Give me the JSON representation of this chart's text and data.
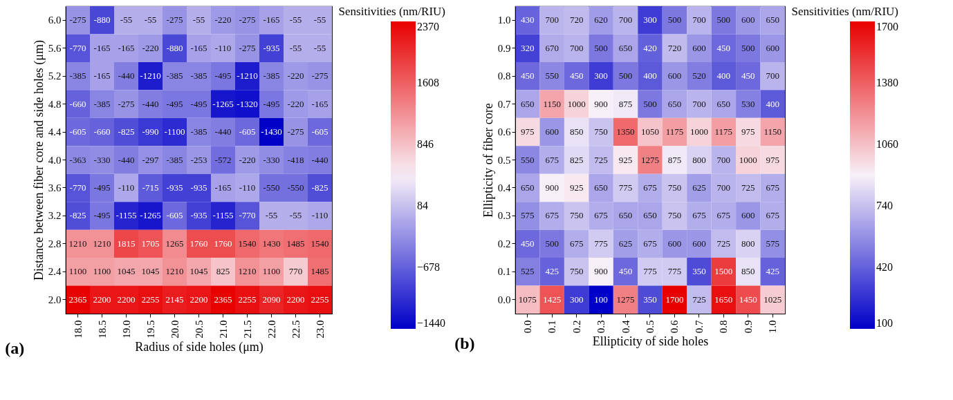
{
  "chart_data": [
    {
      "type": "heatmap",
      "xlabel": "Radius of side holes (μm)",
      "ylabel": "Distance between fiber core and side holes (μm)",
      "clabel": "Sensitivities (nm/RIU)",
      "annotations": [
        "(a)"
      ],
      "data_labels": true,
      "categories": [
        "18.0",
        "18.5",
        "19.0",
        "19.5",
        "20.0",
        "20.5",
        "21.0",
        "21.5",
        "22.0",
        "22.5",
        "23.0"
      ],
      "y_categories": [
        "6.0",
        "5.6",
        "5.2",
        "4.8",
        "4.4",
        "4.0",
        "3.6",
        "3.2",
        "2.8",
        "2.4",
        "2.0"
      ],
      "cells": [
        [
          -275,
          -880,
          -55,
          -55,
          -275,
          -55,
          -220,
          -275,
          -165,
          -55,
          -55
        ],
        [
          -770,
          -165,
          -165,
          -220,
          -880,
          -165,
          -110,
          -275,
          -935,
          -55,
          -55
        ],
        [
          -385,
          -165,
          -440,
          -1210,
          -385,
          -385,
          -495,
          -1210,
          -385,
          -220,
          -275
        ],
        [
          -660,
          -385,
          -275,
          -440,
          -495,
          -495,
          -1265,
          -1320,
          -495,
          -220,
          -165
        ],
        [
          -605,
          -660,
          -825,
          -990,
          -1100,
          -385,
          -440,
          -605,
          -1430,
          -275,
          -605
        ],
        [
          -363,
          -330,
          -440,
          -297,
          -385,
          -253,
          -572,
          -220,
          -330,
          -418,
          -440
        ],
        [
          -770,
          -495,
          -110,
          -715,
          -935,
          -935,
          -165,
          -110,
          -550,
          -550,
          -825
        ],
        [
          -825,
          -495,
          -1155,
          -1265,
          -605,
          -935,
          -1155,
          -770,
          -55,
          -55,
          -110
        ],
        [
          1210,
          1210,
          1815,
          1705,
          1265,
          1760,
          1760,
          1540,
          1430,
          1485,
          1540
        ],
        [
          1100,
          1100,
          1045,
          1045,
          1210,
          1045,
          825,
          1210,
          1100,
          770,
          1485
        ],
        [
          2365,
          2200,
          2200,
          2255,
          2145,
          2200,
          2365,
          2255,
          2090,
          2200,
          2255
        ]
      ],
      "clim": [
        -1440,
        2370
      ],
      "cticks": [
        -1440,
        -678,
        84,
        846,
        1608,
        2370
      ]
    },
    {
      "type": "heatmap",
      "xlabel": "Ellipticity of side holes",
      "ylabel": "Ellipticity of fiber core",
      "clabel": "Sensitivities (nm/RIU)",
      "annotations": [
        "(b)"
      ],
      "data_labels": true,
      "categories": [
        "0.0",
        "0.1",
        "0.2",
        "0.3",
        "0.4",
        "0.5",
        "0.6",
        "0.7",
        "0.8",
        "0.9",
        "1.0"
      ],
      "y_categories": [
        "1.0",
        "0.9",
        "0.8",
        "0.7",
        "0.6",
        "0.5",
        "0.4",
        "0.3",
        "0.2",
        "0.1",
        "0.0"
      ],
      "cells": [
        [
          430,
          700,
          720,
          620,
          700,
          300,
          500,
          700,
          500,
          600,
          650
        ],
        [
          320,
          670,
          700,
          500,
          650,
          420,
          720,
          600,
          450,
          500,
          600
        ],
        [
          450,
          550,
          450,
          300,
          500,
          400,
          600,
          520,
          400,
          450,
          700
        ],
        [
          650,
          1150,
          1000,
          900,
          875,
          500,
          650,
          700,
          650,
          530,
          400
        ],
        [
          975,
          600,
          850,
          750,
          1350,
          1050,
          1175,
          1000,
          1175,
          975,
          1150
        ],
        [
          550,
          675,
          825,
          725,
          925,
          1275,
          875,
          800,
          700,
          1000,
          975
        ],
        [
          650,
          900,
          925,
          650,
          775,
          675,
          750,
          625,
          700,
          725,
          675
        ],
        [
          575,
          675,
          750,
          675,
          650,
          650,
          750,
          675,
          675,
          600,
          675
        ],
        [
          450,
          500,
          675,
          775,
          625,
          675,
          600,
          600,
          725,
          800,
          575
        ],
        [
          525,
          425,
          750,
          900,
          450,
          775,
          775,
          350,
          1500,
          850,
          425
        ],
        [
          1075,
          1425,
          300,
          100,
          1275,
          350,
          1700,
          725,
          1650,
          1450,
          1025
        ]
      ],
      "clim": [
        100,
        1700
      ],
      "cticks": [
        100,
        420,
        740,
        1060,
        1380,
        1700
      ]
    }
  ]
}
